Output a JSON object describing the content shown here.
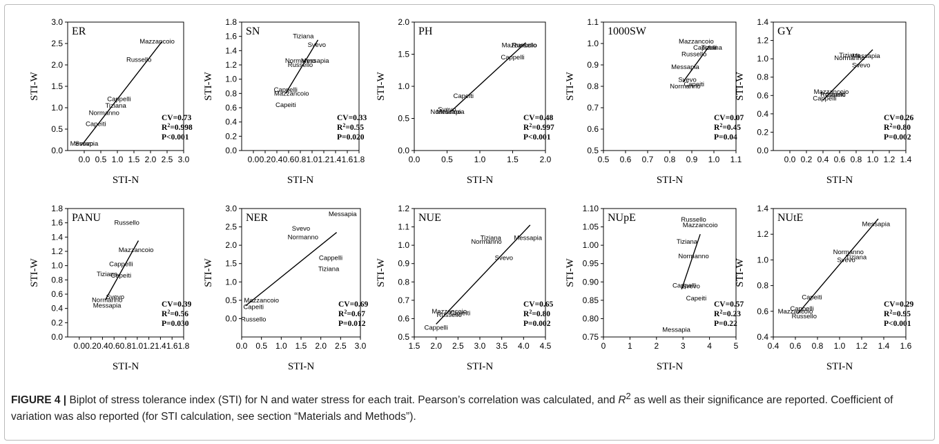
{
  "caption": {
    "label": "FIGURE 4 |",
    "text_before": " Biplot of stress tolerance index (STI) for N and water stress for each trait. Pearson’s correlation was calculated, and ",
    "r_symbol": "R",
    "r_sup": "2",
    "text_after": " as well as their significance are reported. Coefficient of variation was also reported (for STI calculation, see section “Materials and Methods”)."
  },
  "chart_data": [
    {
      "type": "scatter",
      "title": "ER",
      "xlabel": "STI-N",
      "ylabel": "STI-W",
      "xlim": [
        -0.5,
        3.0
      ],
      "ylim": [
        0.0,
        3.0
      ],
      "xticks": [
        "0.0",
        "0.5",
        "1.0",
        "1.5",
        "2.0",
        "2.5",
        "3.0"
      ],
      "yticks": [
        "0.0",
        "0.5",
        "1.0",
        "1.5",
        "2.0",
        "2.5",
        "3.0"
      ],
      "points": [
        {
          "label": "Mazzancoio",
          "x": 2.2,
          "y": 2.55
        },
        {
          "label": "Russello",
          "x": 1.65,
          "y": 2.12
        },
        {
          "label": "Cappelli",
          "x": 1.05,
          "y": 1.2
        },
        {
          "label": "Tiziana",
          "x": 0.95,
          "y": 1.05
        },
        {
          "label": "Normanno",
          "x": 0.6,
          "y": 0.88
        },
        {
          "label": "Capeiti",
          "x": 0.35,
          "y": 0.62
        },
        {
          "label": "Svevo",
          "x": 0.0,
          "y": 0.16
        },
        {
          "label": "Messapia",
          "x": 0.0,
          "y": 0.16
        }
      ],
      "fit": {
        "x": [
          -0.05,
          2.35
        ],
        "y": [
          0.15,
          2.55
        ]
      },
      "stats": {
        "cv": "CV=0.73",
        "r2_prefix": "R",
        "r2_sup": "2",
        "r2_value": "=0.998",
        "p": "P<0.001"
      }
    },
    {
      "type": "scatter",
      "title": "SN",
      "xlabel": "STI-N",
      "ylabel": "STI-W",
      "xlim": [
        -0.2,
        1.8
      ],
      "ylim": [
        0.0,
        1.8
      ],
      "xticks": [
        "0.0",
        "0.2",
        "0.4",
        "0.6",
        "0.8",
        "1.0",
        "1.2",
        "1.4",
        "1.6",
        "1.8"
      ],
      "yticks": [
        "0.0",
        "0.2",
        "0.4",
        "0.6",
        "0.8",
        "1.0",
        "1.2",
        "1.4",
        "1.6",
        "1.8"
      ],
      "points": [
        {
          "label": "Tiziana",
          "x": 0.85,
          "y": 1.6
        },
        {
          "label": "Svevo",
          "x": 1.08,
          "y": 1.48
        },
        {
          "label": "Normanno",
          "x": 0.8,
          "y": 1.26
        },
        {
          "label": "Messapia",
          "x": 1.05,
          "y": 1.26
        },
        {
          "label": "Russello",
          "x": 0.8,
          "y": 1.2
        },
        {
          "label": "Cappelli",
          "x": 0.55,
          "y": 0.85
        },
        {
          "label": "Mazzancoio",
          "x": 0.65,
          "y": 0.8
        },
        {
          "label": "Capeiti",
          "x": 0.55,
          "y": 0.64
        }
      ],
      "fit": {
        "x": [
          0.55,
          1.1
        ],
        "y": [
          0.8,
          1.55
        ]
      },
      "stats": {
        "cv": "CV=0.33",
        "r2_prefix": "R",
        "r2_sup": "2",
        "r2_value": "=0.55",
        "p": "P=0.020"
      }
    },
    {
      "type": "scatter",
      "title": "PH",
      "xlabel": "STI-N",
      "ylabel": "STI-W",
      "xlim": [
        0.0,
        2.0
      ],
      "ylim": [
        0.0,
        2.0
      ],
      "xticks": [
        "0.0",
        "0.5",
        "1.0",
        "1.5",
        "2.0"
      ],
      "yticks": [
        "0.0",
        "0.5",
        "1.0",
        "1.5",
        "2.0"
      ],
      "points": [
        {
          "label": "Mazzancoio",
          "x": 1.6,
          "y": 1.64
        },
        {
          "label": "Russello",
          "x": 1.68,
          "y": 1.64
        },
        {
          "label": "Cappelli",
          "x": 1.5,
          "y": 1.45
        },
        {
          "label": "Capeiti",
          "x": 0.75,
          "y": 0.85
        },
        {
          "label": "Svevo",
          "x": 0.5,
          "y": 0.64
        },
        {
          "label": "Normanno",
          "x": 0.48,
          "y": 0.6
        },
        {
          "label": "Messapia",
          "x": 0.55,
          "y": 0.6
        }
      ],
      "fit": {
        "x": [
          0.55,
          1.7
        ],
        "y": [
          0.6,
          1.68
        ]
      },
      "stats": {
        "cv": "CV=0.48",
        "r2_prefix": "R",
        "r2_sup": "2",
        "r2_value": "=0.997",
        "p": "P<0.001"
      }
    },
    {
      "type": "scatter",
      "title": "1000SW",
      "xlabel": "STI-N",
      "ylabel": "STI-W",
      "xlim": [
        0.5,
        1.1
      ],
      "ylim": [
        0.5,
        1.1
      ],
      "xticks": [
        "0.5",
        "0.6",
        "0.7",
        "0.8",
        "0.9",
        "1.0",
        "1.1"
      ],
      "yticks": [
        "0.5",
        "0.6",
        "0.7",
        "0.8",
        "0.9",
        "1.0",
        "1.1"
      ],
      "points": [
        {
          "label": "Mazzancoio",
          "x": 0.92,
          "y": 1.01
        },
        {
          "label": "Cappelli",
          "x": 0.96,
          "y": 0.98
        },
        {
          "label": "Tiziana",
          "x": 0.99,
          "y": 0.98
        },
        {
          "label": "Russello",
          "x": 0.91,
          "y": 0.95
        },
        {
          "label": "Messapia",
          "x": 0.87,
          "y": 0.89
        },
        {
          "label": "Svevo",
          "x": 0.88,
          "y": 0.83
        },
        {
          "label": "Capeiti",
          "x": 0.91,
          "y": 0.81
        },
        {
          "label": "Normanno",
          "x": 0.87,
          "y": 0.8
        }
      ],
      "fit": {
        "x": [
          0.86,
          0.98
        ],
        "y": [
          0.82,
          0.99
        ]
      },
      "stats": {
        "cv": "CV=0.07",
        "r2_prefix": "R",
        "r2_sup": "2",
        "r2_value": "=0.45",
        "p": "P=0.04"
      }
    },
    {
      "type": "scatter",
      "title": "GY",
      "xlabel": "STI-N",
      "ylabel": "STI-W",
      "xlim": [
        -0.2,
        1.4
      ],
      "ylim": [
        0.0,
        1.4
      ],
      "xticks": [
        "0.0",
        "0.2",
        "0.4",
        "0.6",
        "0.8",
        "1.0",
        "1.2",
        "1.4"
      ],
      "yticks": [
        "0.0",
        "0.2",
        "0.4",
        "0.6",
        "0.8",
        "1.0",
        "1.2",
        "1.4"
      ],
      "points": [
        {
          "label": "Tiziana",
          "x": 0.72,
          "y": 1.04
        },
        {
          "label": "Messapia",
          "x": 0.92,
          "y": 1.03
        },
        {
          "label": "Normanno",
          "x": 0.72,
          "y": 1.01
        },
        {
          "label": "Svevo",
          "x": 0.86,
          "y": 0.93
        },
        {
          "label": "Mazzancoio",
          "x": 0.5,
          "y": 0.64
        },
        {
          "label": "Russello",
          "x": 0.52,
          "y": 0.61
        },
        {
          "label": "Capeiti",
          "x": 0.55,
          "y": 0.61
        },
        {
          "label": "Cappelli",
          "x": 0.42,
          "y": 0.57
        }
      ],
      "fit": {
        "x": [
          0.4,
          1.0
        ],
        "y": [
          0.55,
          1.1
        ]
      },
      "stats": {
        "cv": "CV=0.26",
        "r2_prefix": "R",
        "r2_sup": "2",
        "r2_value": "=0.80",
        "p": "P=0.002"
      }
    },
    {
      "type": "scatter",
      "title": "PANU",
      "xlabel": "STI-N",
      "ylabel": "STI-W",
      "xlim": [
        -0.2,
        1.8
      ],
      "ylim": [
        0.0,
        1.8
      ],
      "xticks": [
        "0.0",
        "0.2",
        "0.4",
        "0.6",
        "0.8",
        "1.0",
        "1.2",
        "1.4",
        "1.6",
        "1.8"
      ],
      "yticks": [
        "0.0",
        "0.2",
        "0.4",
        "0.6",
        "0.8",
        "1.0",
        "1.2",
        "1.4",
        "1.6",
        "1.8"
      ],
      "points": [
        {
          "label": "Russello",
          "x": 0.82,
          "y": 1.6
        },
        {
          "label": "Mazzancoio",
          "x": 0.98,
          "y": 1.22
        },
        {
          "label": "Cappelli",
          "x": 0.72,
          "y": 1.02
        },
        {
          "label": "Tiziana",
          "x": 0.48,
          "y": 0.88
        },
        {
          "label": "Capeiti",
          "x": 0.72,
          "y": 0.86
        },
        {
          "label": "Svevo",
          "x": 0.62,
          "y": 0.56
        },
        {
          "label": "Normanno",
          "x": 0.48,
          "y": 0.52
        },
        {
          "label": "Messapia",
          "x": 0.48,
          "y": 0.44
        }
      ],
      "fit": {
        "x": [
          0.45,
          1.02
        ],
        "y": [
          0.52,
          1.35
        ]
      },
      "stats": {
        "cv": "CV=0.39",
        "r2_prefix": "R",
        "r2_sup": "2",
        "r2_value": "=0.56",
        "p": "P=0.030"
      }
    },
    {
      "type": "scatter",
      "title": "NER",
      "xlabel": "STI-N",
      "ylabel": "STI-W",
      "xlim": [
        0.0,
        3.0
      ],
      "ylim": [
        -0.5,
        3.0
      ],
      "xticks": [
        "0.0",
        "0.5",
        "1.0",
        "1.5",
        "2.0",
        "2.5",
        "3.0"
      ],
      "yticks": [
        "0.0",
        "0.5",
        "1.0",
        "1.5",
        "2.0",
        "2.5",
        "3.0"
      ],
      "points": [
        {
          "label": "Messapia",
          "x": 2.55,
          "y": 2.85
        },
        {
          "label": "Svevo",
          "x": 1.5,
          "y": 2.45
        },
        {
          "label": "Normanno",
          "x": 1.55,
          "y": 2.22
        },
        {
          "label": "Cappelli",
          "x": 2.25,
          "y": 1.65
        },
        {
          "label": "Tiziana",
          "x": 2.2,
          "y": 1.35
        },
        {
          "label": "Mazzancoio",
          "x": 0.5,
          "y": 0.5
        },
        {
          "label": "Capeiti",
          "x": 0.3,
          "y": 0.32
        },
        {
          "label": "Russello",
          "x": 0.3,
          "y": -0.02
        }
      ],
      "fit": {
        "x": [
          0.1,
          2.4
        ],
        "y": [
          0.35,
          2.35
        ]
      },
      "stats": {
        "cv": "CV=0.69",
        "r2_prefix": "R",
        "r2_sup": "2",
        "r2_value": "=0.67",
        "p": "P=0.012"
      }
    },
    {
      "type": "scatter",
      "title": "NUE",
      "xlabel": "STI-N",
      "ylabel": "STI-W",
      "xlim": [
        1.5,
        4.5
      ],
      "ylim": [
        0.5,
        1.2
      ],
      "xticks": [
        "1.5",
        "2.0",
        "2.5",
        "3.0",
        "3.5",
        "4.0",
        "4.5"
      ],
      "yticks": [
        "0.5",
        "0.6",
        "0.7",
        "0.8",
        "0.9",
        "1.0",
        "1.1",
        "1.2"
      ],
      "points": [
        {
          "label": "Tiziana",
          "x": 3.25,
          "y": 1.04
        },
        {
          "label": "Messapia",
          "x": 4.1,
          "y": 1.04
        },
        {
          "label": "Normanno",
          "x": 3.15,
          "y": 1.02
        },
        {
          "label": "Svevo",
          "x": 3.55,
          "y": 0.93
        },
        {
          "label": "Mazzancoio",
          "x": 2.3,
          "y": 0.64
        },
        {
          "label": "Capeiti",
          "x": 2.55,
          "y": 0.63
        },
        {
          "label": "Russello",
          "x": 2.3,
          "y": 0.62
        },
        {
          "label": "Cappelli",
          "x": 2.0,
          "y": 0.55
        }
      ],
      "fit": {
        "x": [
          2.0,
          4.15
        ],
        "y": [
          0.57,
          1.11
        ]
      },
      "stats": {
        "cv": "CV=0.65",
        "r2_prefix": "R",
        "r2_sup": "2",
        "r2_value": "=0.80",
        "p": "P=0.002"
      }
    },
    {
      "type": "scatter",
      "title": "NUpE",
      "xlabel": "STI-N",
      "ylabel": "STI-W",
      "xlim": [
        0,
        5
      ],
      "ylim": [
        0.75,
        1.1
      ],
      "xticks": [
        "0",
        "1",
        "2",
        "3",
        "4",
        "5"
      ],
      "yticks": [
        "0.75",
        "0.80",
        "0.85",
        "0.90",
        "0.95",
        "1.00",
        "1.05",
        "1.10"
      ],
      "points": [
        {
          "label": "Russello",
          "x": 3.4,
          "y": 1.07
        },
        {
          "label": "Mazzancoio",
          "x": 3.65,
          "y": 1.055
        },
        {
          "label": "Tiziana",
          "x": 3.15,
          "y": 1.01
        },
        {
          "label": "Normanno",
          "x": 3.4,
          "y": 0.97
        },
        {
          "label": "Cappelli",
          "x": 3.05,
          "y": 0.89
        },
        {
          "label": "Svevo",
          "x": 3.3,
          "y": 0.888
        },
        {
          "label": "Capeiti",
          "x": 3.5,
          "y": 0.855
        },
        {
          "label": "Messapia",
          "x": 2.75,
          "y": 0.77
        }
      ],
      "fit": {
        "x": [
          2.95,
          3.65
        ],
        "y": [
          0.88,
          1.03
        ]
      },
      "stats": {
        "cv": "CV=0.57",
        "r2_prefix": "R",
        "r2_sup": "2",
        "r2_value": "=0.23",
        "p": "P=0.22"
      }
    },
    {
      "type": "scatter",
      "title": "NUtE",
      "xlabel": "STI-N",
      "ylabel": "STI-W",
      "xlim": [
        0.4,
        1.6
      ],
      "ylim": [
        0.4,
        1.4
      ],
      "xticks": [
        "0.4",
        "0.6",
        "0.8",
        "1.0",
        "1.2",
        "1.4",
        "1.6"
      ],
      "yticks": [
        "0.4",
        "0.6",
        "0.8",
        "1.0",
        "1.2",
        "1.4"
      ],
      "points": [
        {
          "label": "Messapia",
          "x": 1.33,
          "y": 1.28
        },
        {
          "label": "Normanno",
          "x": 1.08,
          "y": 1.06
        },
        {
          "label": "Tiziana",
          "x": 1.15,
          "y": 1.02
        },
        {
          "label": "Svevo",
          "x": 1.06,
          "y": 1.0
        },
        {
          "label": "Capeiti",
          "x": 0.75,
          "y": 0.71
        },
        {
          "label": "Cappelli",
          "x": 0.66,
          "y": 0.62
        },
        {
          "label": "Mazzancoio",
          "x": 0.6,
          "y": 0.6
        },
        {
          "label": "Russello",
          "x": 0.68,
          "y": 0.56
        }
      ],
      "fit": {
        "x": [
          0.62,
          1.35
        ],
        "y": [
          0.58,
          1.32
        ]
      },
      "stats": {
        "cv": "CV=0.29",
        "r2_prefix": "R",
        "r2_sup": "2",
        "r2_value": "=0.95",
        "p": "P<0.001"
      }
    }
  ]
}
